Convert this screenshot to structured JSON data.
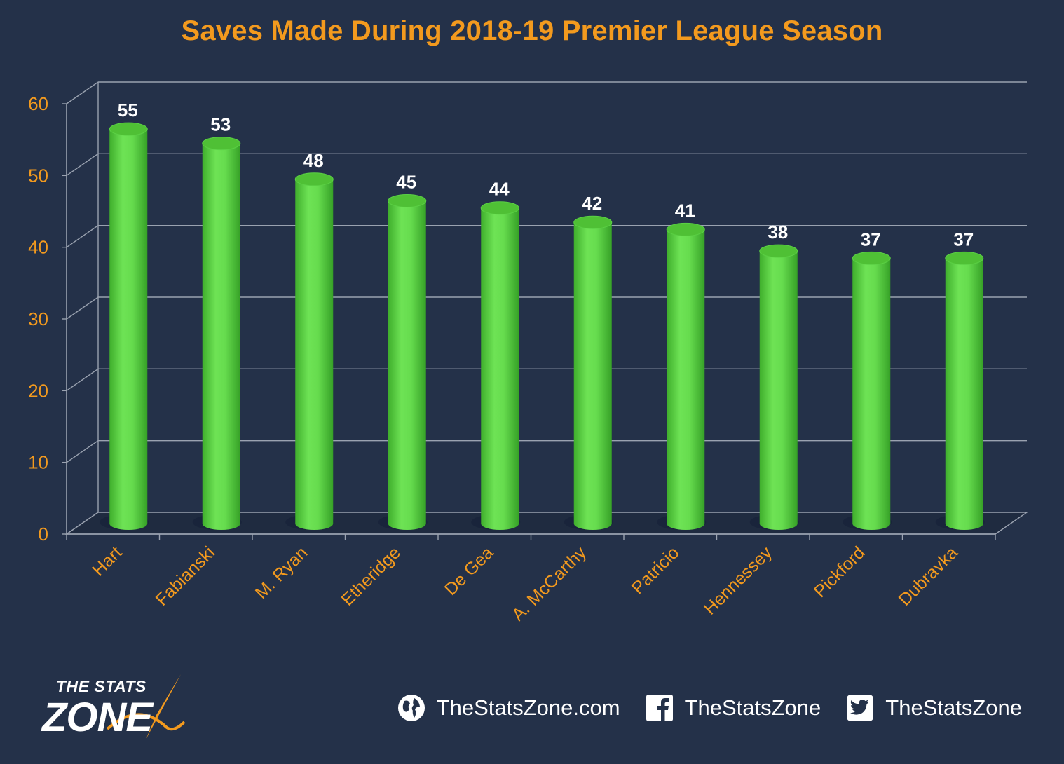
{
  "chart_data": {
    "type": "bar",
    "title": "Saves Made During 2018-19 Premier League Season",
    "categories": [
      "Hart",
      "Fabianski",
      "M. Ryan",
      "Etheridge",
      "De Gea",
      "A. McCarthy",
      "Patricio",
      "Hennessey",
      "Pickford",
      "Dubravka"
    ],
    "values": [
      55,
      53,
      48,
      45,
      44,
      42,
      41,
      38,
      37,
      37
    ],
    "ylim": [
      0,
      60
    ],
    "yticks": [
      "0",
      "10",
      "20",
      "30",
      "40",
      "50",
      "60"
    ],
    "xlabel": "",
    "ylabel": "",
    "grid": true,
    "legend": "none",
    "data_labels": true,
    "bar_shape": "3d-cylinder"
  },
  "colors": {
    "background": "#243149",
    "title": "#f39a1e",
    "axis_text": "#f39a1e",
    "bar": "#62d94a",
    "bar_top": "#4fc035",
    "data_label": "#ffffff",
    "grid": "#9aa2b0"
  },
  "footer": {
    "logo_top": "THE STATS",
    "logo_main": "ZONE",
    "links": [
      {
        "icon": "globe-icon",
        "label": "TheStatsZone.com"
      },
      {
        "icon": "facebook-icon",
        "label": "TheStatsZone"
      },
      {
        "icon": "twitter-icon",
        "label": "TheStatsZone"
      }
    ]
  }
}
